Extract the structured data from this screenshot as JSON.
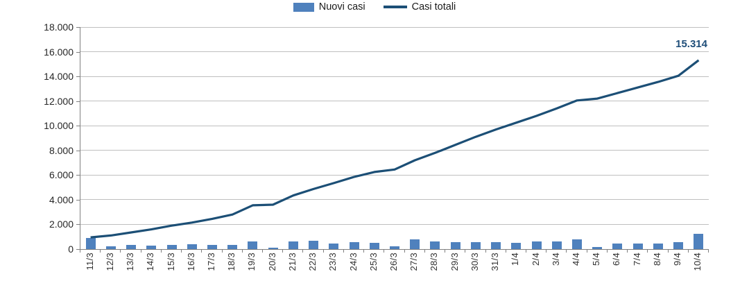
{
  "legend": {
    "items": [
      {
        "label": "Nuovi casi",
        "type": "bar",
        "color": "#4f81bd"
      },
      {
        "label": "Casi totali",
        "type": "line",
        "color": "#1c4f76"
      }
    ]
  },
  "colors": {
    "bar": "#4f81bd",
    "line": "#1c4f76",
    "annotation_text": "#1f4e79",
    "gridline": "#bfbfbf",
    "axis": "#7f7f7f"
  },
  "chart_data": {
    "type": "bar",
    "subtype": "bar+line combo",
    "title": "",
    "xlabel": "",
    "ylabel": "",
    "grid": true,
    "legend_position": "top-center",
    "ylim": [
      0,
      18000
    ],
    "y_ticks": [
      {
        "label": "0",
        "value": 0
      },
      {
        "label": "2.000",
        "value": 2000
      },
      {
        "label": "4.000",
        "value": 4000
      },
      {
        "label": "6.000",
        "value": 6000
      },
      {
        "label": "8.000",
        "value": 8000
      },
      {
        "label": "10.000",
        "value": 10000
      },
      {
        "label": "12.000",
        "value": 12000
      },
      {
        "label": "14.000",
        "value": 14000
      },
      {
        "label": "16.000",
        "value": 16000
      },
      {
        "label": "18.000",
        "value": 18000
      }
    ],
    "categories": [
      "11/3",
      "12/3",
      "13/3",
      "14/3",
      "15/3",
      "16/3",
      "17/3",
      "18/3",
      "19/3",
      "20/3",
      "21/3",
      "22/3",
      "23/3",
      "24/3",
      "25/3",
      "26/3",
      "27/3",
      "28/3",
      "29/3",
      "30/3",
      "31/3",
      "1/4",
      "2/4",
      "3/4",
      "4/4",
      "5/4",
      "6/4",
      "7/4",
      "8/4",
      "9/4",
      "10/4"
    ],
    "series": [
      {
        "name": "Nuovi casi",
        "type": "bar",
        "color": "#4f81bd",
        "values": [
          900,
          200,
          320,
          300,
          350,
          420,
          350,
          350,
          620,
          100,
          620,
          650,
          430,
          580,
          490,
          210,
          770,
          600,
          580,
          580,
          550,
          490,
          640,
          600,
          800,
          170,
          430,
          470,
          430,
          560,
          1250
        ]
      },
      {
        "name": "Casi totali",
        "type": "line",
        "color": "#1c4f76",
        "values": [
          950,
          1100,
          1350,
          1600,
          1900,
          2150,
          2450,
          2800,
          3550,
          3600,
          4350,
          4870,
          5350,
          5850,
          6250,
          6450,
          7200,
          7800,
          8450,
          9100,
          9700,
          10250,
          10800,
          11400,
          12050,
          12200,
          12650,
          13100,
          13550,
          14050,
          15314
        ]
      }
    ],
    "annotation": {
      "text": "15.314",
      "series": "Casi totali",
      "category": "10/4",
      "value": 15314
    }
  }
}
